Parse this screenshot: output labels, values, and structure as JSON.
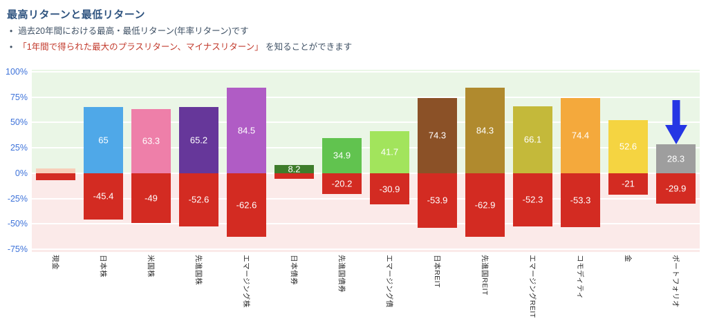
{
  "header": {
    "title": "最高リターンと最低リターン",
    "bullet1": "過去20年間における最高・最低リターン(年率リターン)です",
    "bullet2_highlight": "「1年間で得られた最大のプラスリターン、マイナスリターン」",
    "bullet2_suffix": " を知ることができます",
    "bullet_glyph": "•"
  },
  "chart_data": {
    "type": "bar",
    "title": "最高リターンと最低リターン",
    "subtitle": "過去20年間における最高・最低リターン(年率リターン)",
    "categories": [
      "現金",
      "日本株",
      "米国株",
      "先進国株",
      "エマージング株",
      "日本債券",
      "先進国債券",
      "エマージング債",
      "日本REIT",
      "先進国REIT",
      "エマージングREIT",
      "コモディティ",
      "金",
      "ポートフォリオ"
    ],
    "category_ids": [
      "cash",
      "japan-stocks",
      "us-stocks",
      "developed-stocks",
      "emerging-stocks",
      "japan-bonds",
      "developed-bonds",
      "emerging-bonds",
      "japan-reit",
      "developed-reit",
      "emerging-reit",
      "commodity",
      "gold",
      "portfolio"
    ],
    "series": [
      {
        "name": "最高リターン",
        "values": [
          4.7,
          65,
          63.3,
          65.2,
          84.5,
          8.2,
          34.9,
          41.7,
          74.3,
          84.3,
          66.1,
          74.4,
          52.6,
          28.3
        ],
        "labels": [
          "",
          "65",
          "63.3",
          "65.2",
          "84.5",
          "8.2",
          "34.9",
          "41.7",
          "74.3",
          "84.3",
          "66.1",
          "74.4",
          "52.6",
          "28.3"
        ],
        "colors": [
          "#f7cfba",
          "#4fa8e8",
          "#ee7fa9",
          "#66379a",
          "#b05cc5",
          "#3e7d2b",
          "#61c34f",
          "#a2e45c",
          "#8b5127",
          "#b08a2e",
          "#c4b93a",
          "#f4a93c",
          "#f5d441",
          "#9e9e9e"
        ]
      },
      {
        "name": "最低リターン",
        "values": [
          -7,
          -45.4,
          -49,
          -52.6,
          -62.6,
          -5.8,
          -20.2,
          -30.9,
          -53.9,
          -62.9,
          -52.3,
          -53.3,
          -21,
          -29.9
        ],
        "labels": [
          "",
          "-45.4",
          "-49",
          "-52.6",
          "-62.6",
          "",
          "-20.2",
          "-30.9",
          "-53.9",
          "-62.9",
          "-52.3",
          "-53.3",
          "-21",
          "-29.9"
        ],
        "color": "#d32b22"
      }
    ],
    "ylim": [
      -75,
      100
    ],
    "y_ticks": [
      100,
      75,
      50,
      25,
      0,
      -25,
      -50,
      -75
    ],
    "y_tick_labels": [
      "100%",
      "75%",
      "50%",
      "25%",
      "0%",
      "-25%",
      "-50%",
      "-75%"
    ],
    "grid": true,
    "legend": "none",
    "colors": {
      "plot_bg_positive": "#eaf6e6",
      "plot_bg_negative": "#fbeae9",
      "gridline": "#ffffff",
      "y_tick_text": "#3d72d9",
      "x_tick_text": "#2b2b2b",
      "bar_value_text": "#ffffff"
    },
    "annotation": {
      "type": "arrow-down",
      "target_category": "ポートフォリオ",
      "color": "#2536e4"
    }
  }
}
